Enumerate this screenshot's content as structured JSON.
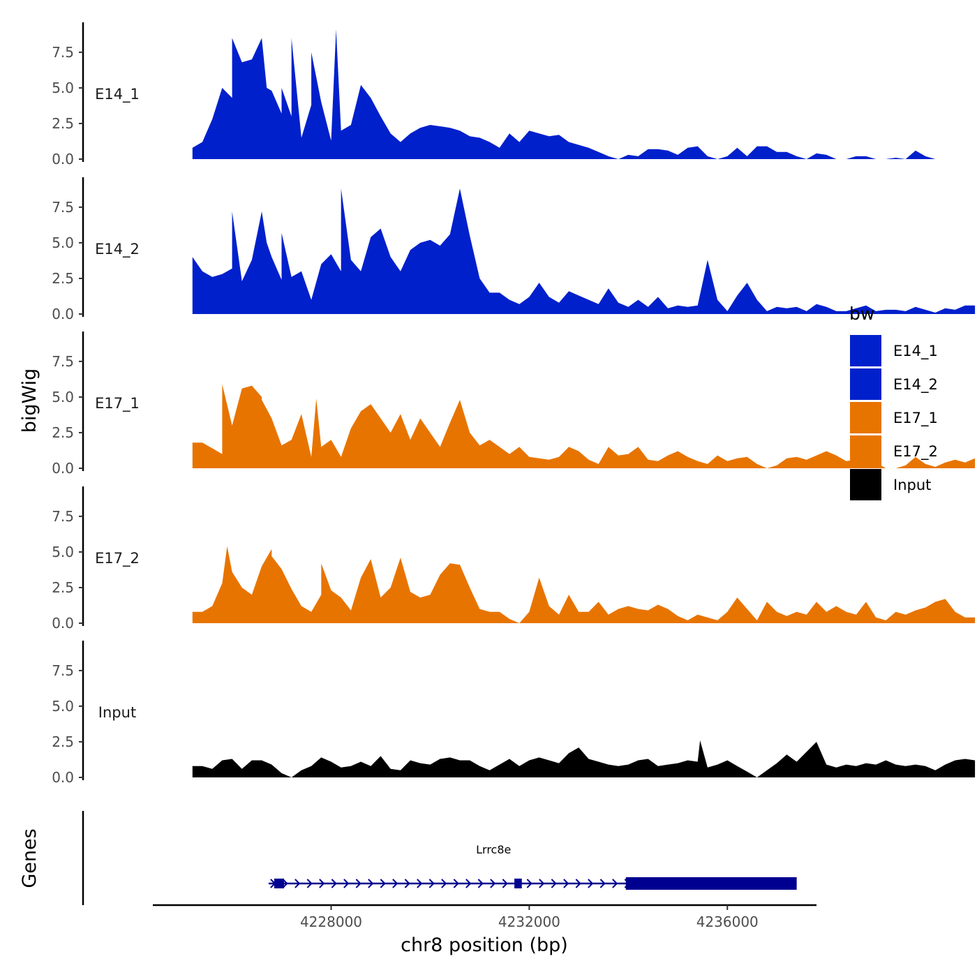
{
  "chart_data": {
    "type": "area",
    "subtype": "genome-coverage-tracks",
    "xlabel": "chr8 position (bp)",
    "ylabel": "bigWig",
    "gene_track_label": "Genes",
    "xlim": [
      4224400,
      4237800
    ],
    "ylim": [
      0,
      9.6
    ],
    "x_ticks": [
      4228000,
      4232000,
      4236000
    ],
    "x_tick_labels": [
      "4228000",
      "4232000",
      "4236000"
    ],
    "y_ticks": [
      0,
      2.5,
      5,
      7.5
    ],
    "y_tick_labels": [
      "0.0",
      "2.5",
      "5.0",
      "7.5"
    ],
    "legend": {
      "title": "bw",
      "position": "right",
      "entries": [
        {
          "label": "E14_1",
          "color": "#0020CC"
        },
        {
          "label": "E14_2",
          "color": "#0020CC"
        },
        {
          "label": "E17_1",
          "color": "#E87400"
        },
        {
          "label": "E17_2",
          "color": "#E87400"
        },
        {
          "label": "Input",
          "color": "#000000"
        }
      ]
    },
    "series": [
      {
        "name": "E14_1",
        "color": "#0020CC",
        "x_start": 4225200,
        "x_step": 200,
        "values": [
          0.8,
          1.2,
          2.8,
          5.0,
          4.3,
          6.8,
          7.0,
          8.5,
          4.8,
          3.2,
          3.0,
          1.5,
          3.8,
          4.0,
          1.3,
          2.0,
          2.4,
          5.2,
          4.3,
          3.0,
          1.8,
          1.2,
          1.8,
          2.2,
          2.4,
          2.3,
          2.2,
          2.0,
          1.6,
          1.5,
          1.2,
          0.8,
          1.8,
          1.2,
          2.0,
          1.8,
          1.6,
          1.7,
          1.2,
          1.0,
          0.8,
          0.5,
          0.2,
          0.0,
          0.3,
          0.2,
          0.7,
          0.7,
          0.6,
          0.3,
          0.8,
          0.9,
          0.2,
          0.0,
          0.2,
          0.8,
          0.2,
          0.9,
          0.9,
          0.5,
          0.5,
          0.2,
          0.0,
          0.4,
          0.3,
          0.0,
          0.0,
          0.2,
          0.2,
          0.0,
          0.0,
          0.1,
          0.0,
          0.6,
          0.2,
          0.0,
          0.0,
          0.0,
          0.0,
          0.0
        ],
        "peaks": [
          [
            4226000,
            8.5
          ],
          [
            4227200,
            8.5
          ],
          [
            4227600,
            7.5
          ],
          [
            4228100,
            9.1
          ],
          [
            4226700,
            5.0
          ],
          [
            4227000,
            5.0
          ]
        ]
      },
      {
        "name": "E14_2",
        "color": "#0020CC",
        "x_start": 4225200,
        "x_step": 200,
        "values": [
          4.0,
          3.0,
          2.6,
          2.8,
          3.2,
          2.3,
          3.8,
          7.2,
          4.0,
          2.4,
          2.6,
          3.0,
          1.0,
          3.5,
          4.2,
          3.0,
          3.8,
          3.0,
          5.4,
          6.0,
          4.0,
          3.0,
          4.5,
          5.0,
          5.2,
          4.8,
          5.6,
          8.8,
          5.5,
          2.5,
          1.5,
          1.5,
          1.0,
          0.7,
          1.2,
          2.2,
          1.2,
          0.8,
          1.6,
          1.3,
          1.0,
          0.7,
          1.8,
          0.8,
          0.5,
          1.0,
          0.5,
          1.2,
          0.4,
          0.6,
          0.5,
          0.6,
          3.8,
          1.0,
          0.2,
          1.3,
          2.2,
          1.0,
          0.2,
          0.5,
          0.4,
          0.5,
          0.2,
          0.7,
          0.5,
          0.2,
          0.2,
          0.4,
          0.6,
          0.2,
          0.3,
          0.3,
          0.2,
          0.5,
          0.3,
          0.1,
          0.4,
          0.3,
          0.6,
          0.6
        ],
        "peaks": [
          [
            4226000,
            7.2
          ],
          [
            4228200,
            8.8
          ],
          [
            4226700,
            5.0
          ],
          [
            4227000,
            5.7
          ]
        ]
      },
      {
        "name": "E17_1",
        "color": "#E87400",
        "x_start": 4225200,
        "x_step": 200,
        "values": [
          1.8,
          1.8,
          1.4,
          1.0,
          3.0,
          5.6,
          5.8,
          5.0,
          3.5,
          1.6,
          2.0,
          3.8,
          0.8,
          1.5,
          2.0,
          0.8,
          2.8,
          4.0,
          4.5,
          3.5,
          2.5,
          3.8,
          2.0,
          3.5,
          2.5,
          1.5,
          3.2,
          4.8,
          2.5,
          1.6,
          2.0,
          1.5,
          1.0,
          1.5,
          0.8,
          0.7,
          0.6,
          0.8,
          1.5,
          1.2,
          0.6,
          0.3,
          1.5,
          0.9,
          1.0,
          1.5,
          0.6,
          0.5,
          0.9,
          1.2,
          0.8,
          0.5,
          0.3,
          0.9,
          0.5,
          0.7,
          0.8,
          0.3,
          0.0,
          0.2,
          0.7,
          0.8,
          0.6,
          0.9,
          1.2,
          0.9,
          0.5,
          0.6,
          1.7,
          0.4,
          0.0,
          0.0,
          0.2,
          0.8,
          0.3,
          0.1,
          0.4,
          0.6,
          0.4,
          0.7
        ],
        "peaks": [
          [
            4225800,
            5.9
          ],
          [
            4226600,
            4.8
          ],
          [
            4227700,
            4.9
          ]
        ]
      },
      {
        "name": "E17_2",
        "color": "#E87400",
        "x_start": 4225200,
        "x_step": 200,
        "values": [
          0.8,
          0.8,
          1.2,
          2.8,
          3.6,
          2.5,
          2.0,
          4.0,
          5.2,
          3.8,
          2.4,
          1.2,
          0.8,
          2.0,
          2.3,
          1.8,
          0.9,
          3.2,
          4.5,
          1.8,
          2.5,
          4.6,
          2.2,
          1.8,
          2.0,
          3.4,
          4.2,
          4.1,
          2.5,
          1.0,
          0.8,
          0.8,
          0.3,
          0.0,
          0.8,
          3.2,
          1.2,
          0.6,
          2.0,
          0.8,
          0.8,
          1.5,
          0.6,
          1.0,
          1.2,
          1.0,
          0.9,
          1.3,
          1.0,
          0.5,
          0.2,
          0.6,
          0.4,
          0.2,
          0.8,
          1.8,
          1.0,
          0.2,
          1.5,
          0.8,
          0.5,
          0.8,
          0.6,
          1.5,
          0.8,
          1.2,
          0.8,
          0.6,
          1.5,
          0.4,
          0.2,
          0.8,
          0.6,
          0.9,
          1.1,
          1.5,
          1.7,
          0.8,
          0.4,
          0.4
        ],
        "peaks": [
          [
            4225900,
            5.4
          ],
          [
            4226800,
            4.7
          ],
          [
            4227800,
            4.2
          ]
        ]
      },
      {
        "name": "Input",
        "color": "#000000",
        "x_start": 4225200,
        "x_step": 200,
        "values": [
          0.8,
          0.8,
          0.6,
          1.2,
          1.3,
          0.6,
          1.2,
          1.2,
          0.9,
          0.3,
          0.0,
          0.5,
          0.8,
          1.4,
          1.1,
          0.7,
          0.8,
          1.1,
          0.8,
          1.5,
          0.6,
          0.5,
          1.2,
          1.0,
          0.9,
          1.3,
          1.4,
          1.2,
          1.2,
          0.8,
          0.5,
          0.9,
          1.3,
          0.8,
          1.2,
          1.4,
          1.2,
          1.0,
          1.7,
          2.1,
          1.3,
          1.1,
          0.9,
          0.8,
          0.9,
          1.2,
          1.3,
          0.8,
          0.9,
          1.0,
          1.2,
          1.1,
          0.7,
          0.9,
          1.2,
          0.8,
          0.4,
          0.0,
          0.5,
          1.0,
          1.6,
          1.1,
          1.8,
          2.5,
          0.9,
          0.7,
          0.9,
          0.8,
          1.0,
          0.9,
          1.2,
          0.9,
          0.8,
          0.9,
          0.8,
          0.5,
          0.9,
          1.2,
          1.3,
          1.2
        ],
        "peaks": [
          [
            4235450,
            2.6
          ]
        ]
      }
    ],
    "genes": [
      {
        "name": "Lrrc8e",
        "strand": "+",
        "start": 4226850,
        "end": 4237400,
        "exons": [
          [
            4226850,
            4227050
          ],
          [
            4231700,
            4231850
          ],
          [
            4233950,
            4237400
          ]
        ]
      }
    ]
  }
}
